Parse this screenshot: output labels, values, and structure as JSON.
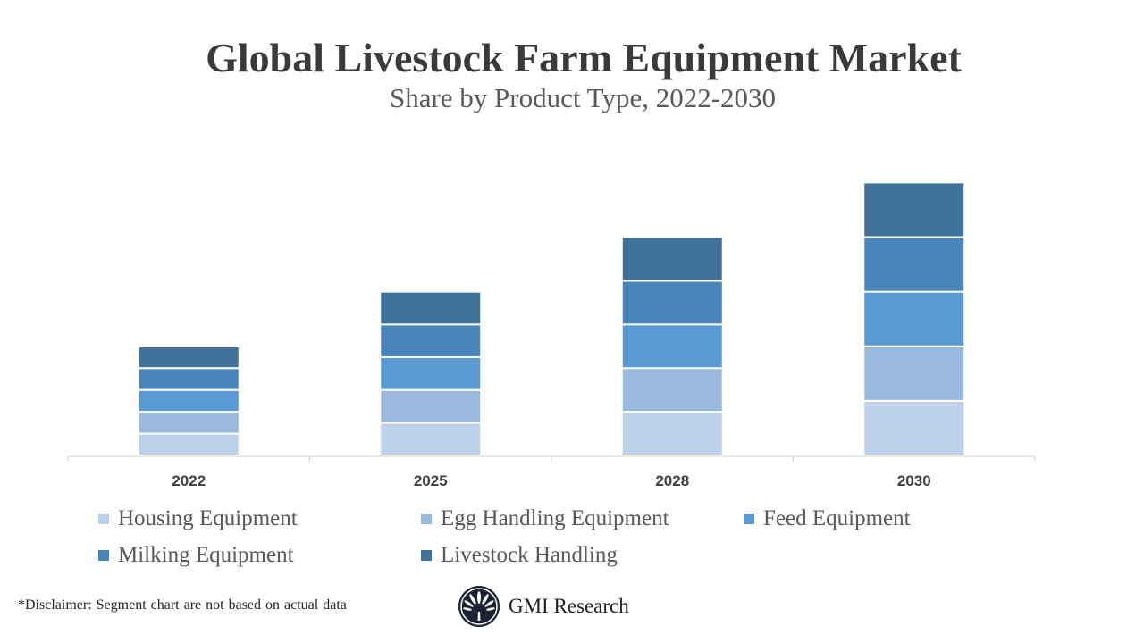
{
  "chart_data": {
    "type": "bar",
    "stacked": true,
    "title": "Global Livestock Farm Equipment Market",
    "subtitle": "Share by Product Type, 2022-2030",
    "categories": [
      "2022",
      "2025",
      "2028",
      "2030"
    ],
    "series": [
      {
        "name": "Housing Equipment",
        "color": "#bdd1ea",
        "values": [
          1.0,
          1.5,
          2.0,
          2.5
        ]
      },
      {
        "name": "Egg Handling Equipment",
        "color": "#9ab9de",
        "values": [
          1.0,
          1.5,
          2.0,
          2.5
        ]
      },
      {
        "name": "Feed Equipment",
        "color": "#5a9ad4",
        "values": [
          1.0,
          1.5,
          2.0,
          2.5
        ]
      },
      {
        "name": "Milking Equipment",
        "color": "#4a85ba",
        "values": [
          1.0,
          1.5,
          2.0,
          2.5
        ]
      },
      {
        "name": "Livestock Handling",
        "color": "#41729c",
        "values": [
          1.0,
          1.5,
          2.0,
          2.5
        ]
      }
    ],
    "y_axis_shown": false,
    "grid": false,
    "legend_position": "bottom"
  },
  "footer": {
    "disclaimer": "*Disclaimer:   Segment chart are not based on actual data",
    "brand": "GMI Research"
  }
}
